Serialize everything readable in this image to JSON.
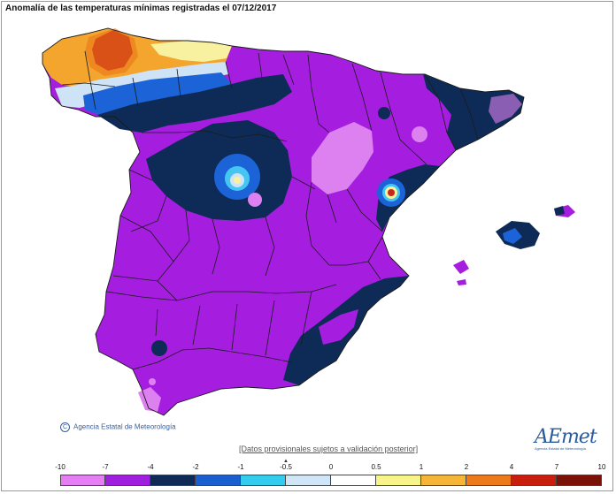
{
  "title": "Anomalía de las temperaturas mínimas registradas el 07/12/2017",
  "credit": "Agencia Estatal de Meteorología",
  "credit_symbol": "C",
  "notice": "[Datos provisionales sujetos a validación posterior]",
  "logo": {
    "word": "AEmet",
    "sub": "Agencia Estatal de Meteorología"
  },
  "legend": {
    "ticks": [
      "-10",
      "-7",
      "-4",
      "-2",
      "-1",
      "-0.5",
      "0",
      "0.5",
      "1",
      "2",
      "4",
      "7",
      "10"
    ],
    "colors": [
      "#e57ef2",
      "#9e1fde",
      "#0f2a55",
      "#1a5fd0",
      "#33ccee",
      "#d0e6f8",
      "#ffffff",
      "#f6f48a",
      "#f5b638",
      "#ec7a1c",
      "#c81e0e",
      "#7a1208"
    ]
  },
  "palette": {
    "land_base": "#a51ee0",
    "light_violet": "#dd80f0",
    "navy": "#0e2b57",
    "blue": "#1b63d6",
    "cyan": "#45c6f2",
    "pale_blue": "#cfe3f6",
    "yellow": "#f7f1a0",
    "orange": "#f3a52e",
    "dark_orange": "#ea7317",
    "red": "#c8281a",
    "border": "#1a1a1a"
  }
}
